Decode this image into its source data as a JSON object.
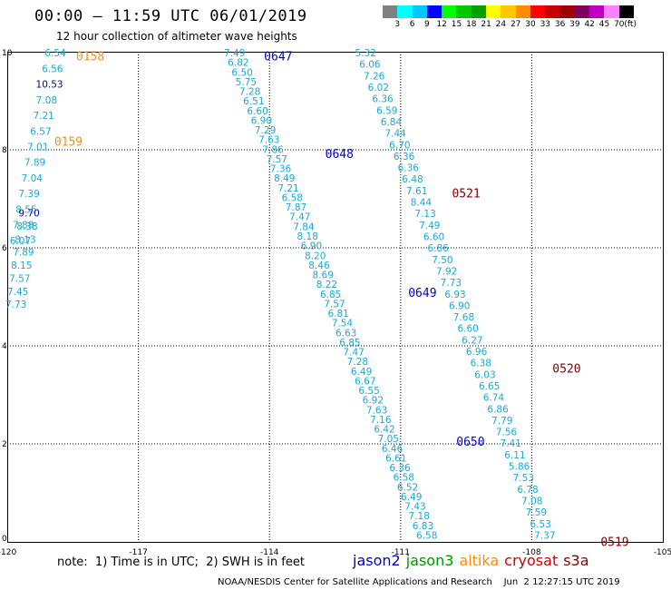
{
  "header": {
    "title": "00:00 – 11:59 UTC 06/01/2019",
    "subtitle": "12 hour collection of altimeter wave heights"
  },
  "colorbar": {
    "labels": [
      "3",
      "6",
      "9",
      "12",
      "15",
      "18",
      "21",
      "24",
      "27",
      "30",
      "33",
      "36",
      "39",
      "42",
      "45",
      "70",
      "(ft)"
    ],
    "colors": [
      "#808080",
      "#00ffff",
      "#00c8ff",
      "#0000ff",
      "#00ff00",
      "#00c800",
      "#00a000",
      "#ffff00",
      "#ffc800",
      "#ff8c00",
      "#ff0000",
      "#c80000",
      "#a00000",
      "#800060",
      "#c000c0",
      "#ff80ff",
      "#000000"
    ]
  },
  "map": {
    "x_range": [
      -120,
      -105
    ],
    "y_range": [
      0,
      10
    ],
    "x_ticks": [
      "-120",
      "-117",
      "-114",
      "-111",
      "-108",
      "-105"
    ],
    "y_ticks": [
      "0",
      "2",
      "4",
      "6",
      "8",
      "10"
    ],
    "colors": {
      "jason2": "#0000cc",
      "jason3": "#009900",
      "altika": "#ff8c00",
      "cryosat": "#cc0000",
      "s3a": "#800000",
      "wave_light": "#18a8d8",
      "wave_dark": "#0000aa"
    },
    "tracks": [
      {
        "name": "altika-west",
        "start": {
          "lon": -118.9,
          "lat": 9.98
        },
        "end": {
          "lon": -119.7,
          "lat": 6.15
        },
        "values": [
          "6.54",
          "6.56",
          "10.53",
          "7.08",
          "7.21",
          "6.57",
          "7.01",
          "7.89",
          "7.04",
          "7.39",
          "8.55",
          "7.88",
          "6.07"
        ],
        "highlight": [
          "10.53"
        ]
      },
      {
        "name": "altika-west-2",
        "start": {
          "lon": -119.5,
          "lat": 6.71
        },
        "end": {
          "lon": -119.8,
          "lat": 4.85
        },
        "values": [
          "9.70",
          "8.38",
          "8.13",
          "7.89",
          "8.15",
          "7.57",
          "7.45",
          "7.73"
        ],
        "highlight": [
          "9.70"
        ]
      },
      {
        "name": "jason2-mid",
        "start": {
          "lon": -114.8,
          "lat": 9.98
        },
        "end": {
          "lon": -110.4,
          "lat": 0.14
        },
        "values": [
          "7.49",
          "6.82",
          "6.50",
          "5.75",
          "7.28",
          "6.51",
          "6.60",
          "6.90",
          "7.29",
          "7.63",
          "7.86",
          "7.57",
          "7.36",
          "8.49",
          "7.21",
          "6.58",
          "7.87",
          "7.47",
          "7.84",
          "8.18",
          "6.90",
          "8.20",
          "8.46",
          "8.69",
          "8.22",
          "6.85",
          "7.57",
          "6.81",
          "7.54",
          "6.63",
          "6.85",
          "7.47",
          "7.28",
          "6.49",
          "6.67",
          "6.55",
          "6.92",
          "7.63",
          "7.16",
          "6.42",
          "7.05",
          "6.46",
          "6.61",
          "6.36",
          "6.58",
          "6.52",
          "6.49",
          "7.43",
          "7.18",
          "6.83",
          "6.58"
        ],
        "highlight": []
      },
      {
        "name": "cryosat-east",
        "start": {
          "lon": -111.8,
          "lat": 9.98
        },
        "end": {
          "lon": -107.7,
          "lat": 0.14
        },
        "values": [
          "5.32",
          "6.06",
          "7.26",
          "6.02",
          "6.36",
          "6.59",
          "6.84",
          "7.44",
          "6.70",
          "6.36",
          "6.36",
          "6.48",
          "7.61",
          "8.44",
          "7.13",
          "7.49",
          "6.60",
          "6.86",
          "7.50",
          "7.92",
          "7.73",
          "6.93",
          "6.90",
          "7.68",
          "6.60",
          "6.27",
          "6.96",
          "6.38",
          "6.03",
          "6.65",
          "6.74",
          "6.86",
          "7.79",
          "7.56",
          "7.41",
          "6.11",
          "5.86",
          "7.53",
          "6.78",
          "7.08",
          "7.59",
          "6.53",
          "7.37"
        ],
        "highlight": []
      }
    ],
    "time_labels": [
      {
        "text": "0158",
        "lon": -118.1,
        "lat": 9.92,
        "color": "#ff8c00"
      },
      {
        "text": "0159",
        "lon": -118.6,
        "lat": 8.18,
        "color": "#ff8c00"
      },
      {
        "text": "0647",
        "lon": -113.8,
        "lat": 9.92,
        "color": "#0000cc"
      },
      {
        "text": "0648",
        "lon": -112.4,
        "lat": 7.93,
        "color": "#0000cc"
      },
      {
        "text": "0649",
        "lon": -110.5,
        "lat": 5.09,
        "color": "#0000cc"
      },
      {
        "text": "0650",
        "lon": -109.4,
        "lat": 2.06,
        "color": "#0000cc"
      },
      {
        "text": "0521",
        "lon": -109.5,
        "lat": 7.12,
        "color": "#800000"
      },
      {
        "text": "0520",
        "lon": -107.2,
        "lat": 3.55,
        "color": "#800000"
      },
      {
        "text": "0519",
        "lon": -106.1,
        "lat": 0.01,
        "color": "#800000"
      }
    ]
  },
  "footer": {
    "note": "note:  1) Time is in UTC;  2) SWH is in feet",
    "legend": [
      {
        "label": "jason2",
        "color": "#0000cc"
      },
      {
        "label": "jason3",
        "color": "#009900"
      },
      {
        "label": "altika",
        "color": "#ff8c00"
      },
      {
        "label": "cryosat",
        "color": "#cc0000"
      },
      {
        "label": "s3a",
        "color": "#800000"
      }
    ],
    "credit": "NOAA/NESDIS Center for Satellite Applications and Research    Jun  2 12:27:15 UTC 2019"
  }
}
